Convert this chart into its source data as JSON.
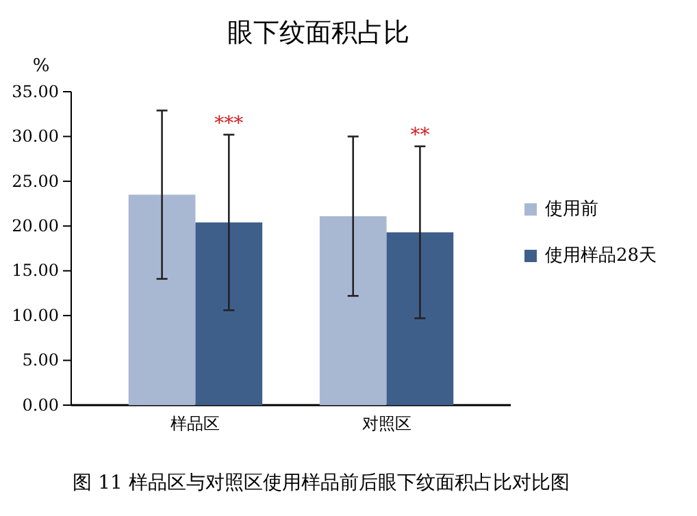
{
  "chart_data": {
    "type": "bar",
    "title": "眼下纹面积占比",
    "ylabel": "%",
    "categories": [
      "样品区",
      "对照区"
    ],
    "series": [
      {
        "name": "使用前",
        "color": "#a9b8d2",
        "values": [
          23.5,
          21.1
        ],
        "errors": [
          9.4,
          8.9
        ]
      },
      {
        "name": "使用样品28天",
        "color": "#3f5f8b",
        "values": [
          20.4,
          19.3
        ],
        "errors": [
          9.8,
          9.6
        ]
      }
    ],
    "ylim": [
      0,
      35
    ],
    "yticks": [
      {
        "value": 0,
        "label": "0.00"
      },
      {
        "value": 5,
        "label": "5.00"
      },
      {
        "value": 10,
        "label": "10.00"
      },
      {
        "value": 15,
        "label": "15.00"
      },
      {
        "value": 20,
        "label": "20.00"
      },
      {
        "value": 25,
        "label": "25.00"
      },
      {
        "value": 30,
        "label": "30.00"
      },
      {
        "value": 35,
        "label": "35.00"
      }
    ],
    "annotations": [
      "***",
      "**",
      "图 11 样品区与对照区使用样品前后眼下纹面积占比对比图"
    ],
    "legend": "right",
    "grid": false
  }
}
